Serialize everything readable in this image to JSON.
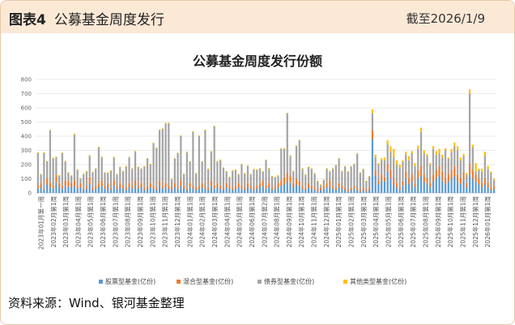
{
  "header": {
    "label": "图表4",
    "title": "公募基金周度发行",
    "date": "截至2026/1/9"
  },
  "source": "资料来源：Wind、银河基金整理",
  "colors": {
    "header_bg": "#fbe9d6",
    "border": "#e6c9a8",
    "stock": "#5b9bd5",
    "mixed": "#ed7d31",
    "bond": "#a5a5a5",
    "other": "#ffc000"
  },
  "chart_data": {
    "type": "bar",
    "stacked": true,
    "title": "公募基金周度发行份额",
    "ylim": [
      0,
      800
    ],
    "yticks": [
      0,
      100,
      200,
      300,
      400,
      500,
      600,
      700,
      800
    ],
    "grid": true,
    "legend_position": "bottom",
    "x_tick_labels": [
      "2023年01月第一周",
      "2023年02月第1周",
      "2023年03月第1周",
      "2023年04月第1周",
      "2023年05月第1周",
      "2023年06月第1周",
      "2023年07月第1周",
      "2023年08月第1周",
      "2023年09月第1周",
      "2023年10月第1周",
      "2023年11月第1周",
      "2023年12月第1周",
      "2024年01月第1周",
      "2024年02月第1周",
      "2024年03月第1周",
      "2024年04月第1周",
      "2024年05月第1周",
      "2024年06月第1周",
      "2024年07月第2周",
      "2024年08月第1周",
      "2024年09月第1周",
      "2024年10月第1周",
      "2024年11月第1周",
      "2024年12月第1周",
      "2025年01月第1周",
      "2025年02月第1周",
      "2025年03月第1周",
      "2025年04月第1周",
      "2025年05月第1周",
      "2025年06月第1周",
      "2025年07月第1周",
      "2025年08月第1周",
      "2025年09月第1周",
      "2025年10月第1周",
      "2025年11月第1周",
      "2025年12月第1周",
      "2026年01月第1周"
    ],
    "series": [
      {
        "name": "股票型基金(亿份)",
        "color": "#5b9bd5",
        "values": [
          30,
          40,
          20,
          60,
          40,
          30,
          70,
          40,
          30,
          50,
          45,
          40,
          50,
          30,
          40,
          20,
          30,
          60,
          20,
          30,
          40,
          50,
          30,
          40,
          20,
          50,
          30,
          40,
          30,
          20,
          40,
          30,
          50,
          30,
          40,
          20,
          30,
          40,
          30,
          20,
          50,
          30,
          40,
          30,
          20,
          40,
          30,
          50,
          30,
          20,
          40,
          30,
          20,
          30,
          40,
          30,
          20,
          50,
          30,
          40,
          30,
          20,
          40,
          30,
          20,
          30,
          40,
          30,
          20,
          40,
          30,
          20,
          30,
          40,
          50,
          30,
          40,
          20,
          30,
          40,
          50,
          60,
          80,
          70,
          40,
          60,
          50,
          30,
          20,
          40,
          30,
          20,
          10,
          20,
          30,
          40,
          50,
          30,
          20,
          40,
          30,
          20,
          10,
          20,
          30,
          20,
          10,
          20,
          10,
          20,
          380,
          120,
          60,
          90,
          80,
          150,
          100,
          60,
          40,
          20,
          50,
          100,
          60,
          80,
          40,
          100,
          120,
          80,
          60,
          40,
          80,
          100,
          120,
          90,
          60,
          80,
          100,
          120,
          80,
          60,
          90,
          40,
          130,
          100,
          80,
          60,
          40,
          60,
          40,
          20,
          30
        ]
      },
      {
        "name": "混合型基金(亿份)",
        "color": "#ed7d31",
        "values": [
          20,
          30,
          10,
          40,
          30,
          20,
          60,
          30,
          20,
          40,
          35,
          30,
          40,
          20,
          30,
          10,
          20,
          50,
          15,
          20,
          30,
          40,
          20,
          30,
          15,
          40,
          20,
          30,
          20,
          15,
          30,
          20,
          40,
          20,
          30,
          15,
          20,
          30,
          20,
          15,
          40,
          20,
          30,
          20,
          15,
          30,
          20,
          40,
          20,
          15,
          30,
          20,
          15,
          20,
          30,
          20,
          15,
          40,
          20,
          30,
          20,
          15,
          30,
          20,
          15,
          20,
          30,
          20,
          15,
          30,
          20,
          15,
          20,
          30,
          40,
          20,
          30,
          15,
          20,
          30,
          40,
          50,
          60,
          50,
          30,
          40,
          30,
          20,
          15,
          30,
          20,
          15,
          10,
          15,
          20,
          30,
          40,
          20,
          15,
          30,
          20,
          15,
          10,
          15,
          20,
          15,
          10,
          15,
          10,
          15,
          60,
          40,
          30,
          40,
          30,
          50,
          60,
          40,
          30,
          20,
          30,
          50,
          40,
          50,
          30,
          60,
          70,
          50,
          40,
          30,
          50,
          60,
          70,
          60,
          40,
          50,
          60,
          70,
          50,
          40,
          50,
          30,
          70,
          60,
          50,
          40,
          30,
          40,
          30,
          20,
          20
        ]
      },
      {
        "name": "债券型基金(亿份)",
        "color": "#a5a5a5",
        "values": [
          230,
          60,
          250,
          120,
          370,
          190,
          120,
          50,
          230,
          130,
          60,
          50,
          320,
          110,
          30,
          100,
          100,
          150,
          110,
          120,
          250,
          160,
          90,
          70,
          120,
          160,
          80,
          110,
          100,
          150,
          180,
          120,
          200,
          130,
          100,
          150,
          190,
          130,
          300,
          280,
          350,
          400,
          420,
          440,
          60,
          170,
          230,
          310,
          80,
          250,
          150,
          380,
          100,
          350,
          150,
          390,
          130,
          200,
          420,
          150,
          180,
          140,
          80,
          60,
          120,
          110,
          60,
          150,
          100,
          120,
          80,
          130,
          110,
          100,
          60,
          180,
          100,
          80,
          60,
          50,
          220,
          200,
          420,
          140,
          80,
          230,
          290,
          120,
          90,
          110,
          120,
          100,
          60,
          20,
          40,
          100,
          60,
          120,
          160,
          170,
          100,
          150,
          130,
          150,
          150,
          240,
          120,
          130,
          60,
          80,
          120,
          90,
          110,
          100,
          120,
          140,
          130,
          150,
          130,
          140,
          140,
          120,
          130,
          150,
          120,
          150,
          240,
          150,
          160,
          130,
          180,
          110,
          90,
          100,
          200,
          110,
          130,
          140,
          170,
          130,
          120,
          60,
          500,
          160,
          20,
          60,
          80,
          160,
          100,
          100,
          40
        ]
      },
      {
        "name": "其他类型基金(亿份)",
        "color": "#ffc000",
        "values": [
          5,
          4,
          6,
          5,
          5,
          8,
          6,
          5,
          4,
          6,
          5,
          4,
          7,
          5,
          4,
          6,
          5,
          6,
          5,
          4,
          5,
          6,
          5,
          4,
          6,
          5,
          4,
          5,
          6,
          5,
          4,
          5,
          6,
          5,
          4,
          5,
          6,
          5,
          4,
          5,
          6,
          5,
          4,
          5,
          6,
          5,
          4,
          5,
          6,
          5,
          4,
          5,
          6,
          5,
          4,
          5,
          6,
          5,
          4,
          5,
          6,
          5,
          4,
          5,
          6,
          5,
          4,
          5,
          6,
          5,
          4,
          5,
          6,
          5,
          4,
          5,
          6,
          5,
          4,
          5,
          6,
          5,
          4,
          5,
          6,
          5,
          4,
          5,
          6,
          5,
          4,
          5,
          6,
          5,
          4,
          5,
          6,
          5,
          4,
          5,
          6,
          5,
          4,
          5,
          6,
          5,
          4,
          5,
          6,
          5,
          30,
          20,
          10,
          15,
          20,
          30,
          40,
          60,
          30,
          20,
          10,
          20,
          30,
          15,
          20,
          25,
          30,
          20,
          15,
          10,
          20,
          25,
          30,
          20,
          15,
          10,
          20,
          25,
          30,
          20,
          15,
          10,
          30,
          20,
          60,
          10,
          20,
          30,
          20,
          10,
          10
        ]
      }
    ]
  }
}
